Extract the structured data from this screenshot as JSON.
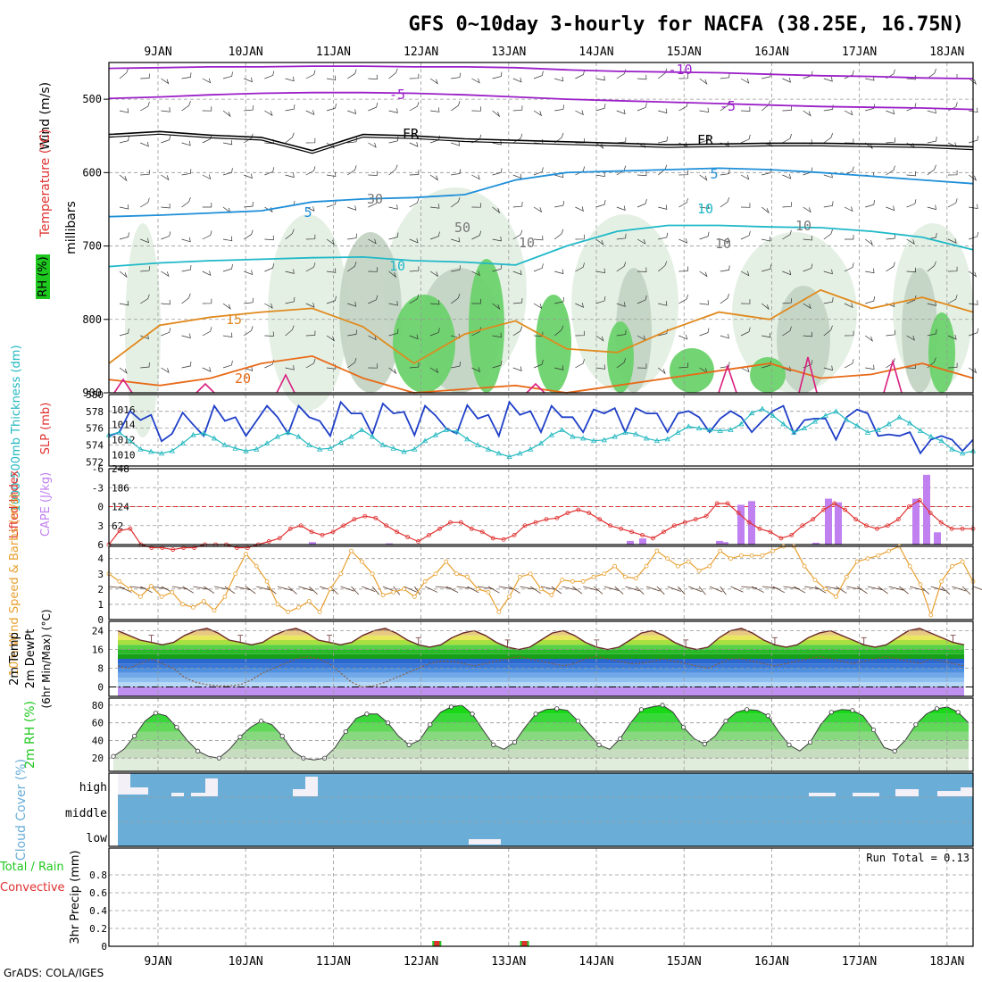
{
  "title": "GFS 0~10day 3-hourly for NACFA (38.25E, 16.75N)",
  "credit": "GrADS: COLA/IGES",
  "days": [
    "9JAN",
    "10JAN",
    "11JAN",
    "12JAN",
    "13JAN",
    "14JAN",
    "15JAN",
    "16JAN",
    "17JAN",
    "18JAN"
  ],
  "colors": {
    "purple": "#9b1fc8",
    "cyan": "#1fb8c8",
    "blue": "#1f8fd8",
    "orange": "#e08a1e",
    "deep_orange": "#e86a18",
    "magenta": "#d81f80",
    "slp": "#1f3fc8",
    "thick": "#22b8c0",
    "li": "#e03030",
    "cape": "#c080f0",
    "wind10": "#e8a030",
    "rhgreen": "#1fc81f",
    "cloud": "#6aaed8"
  },
  "chart_data": [
    {
      "type": "contour",
      "panel": "upper-air",
      "ylabels": [
        "Wind (m/s)",
        "Temperature (°C)",
        "RH (%)"
      ],
      "yaxis_label": "millibars",
      "yticks": [
        500,
        600,
        700,
        800,
        900
      ],
      "ylim": [
        900,
        450
      ],
      "contour_labels": [
        "-10",
        "-5",
        "-5",
        "FR",
        "FR",
        "5",
        "5",
        "10",
        "10",
        "15",
        "20",
        "30",
        "50",
        "10",
        "10",
        "10"
      ],
      "isotherms": [
        {
          "label": "-10",
          "values": [
            458,
            457,
            456,
            456,
            455,
            455,
            456,
            456,
            457,
            460,
            462,
            463,
            464,
            466,
            468,
            469,
            471,
            472
          ]
        },
        {
          "label": "-5",
          "values": [
            499,
            497,
            494,
            492,
            491,
            491,
            492,
            494,
            497,
            500,
            502,
            504,
            506,
            508,
            510,
            511,
            512,
            514
          ]
        },
        {
          "label": "FR",
          "values": [
            548,
            544,
            549,
            552,
            570,
            548,
            550,
            554,
            556,
            558,
            560,
            562,
            561,
            560,
            560,
            561,
            562,
            565
          ]
        },
        {
          "label": "5",
          "values": [
            660,
            658,
            655,
            652,
            640,
            636,
            634,
            630,
            610,
            600,
            598,
            596,
            594,
            596,
            600,
            605,
            610,
            615
          ]
        },
        {
          "label": "10",
          "values": [
            728,
            723,
            720,
            718,
            716,
            715,
            720,
            722,
            726,
            700,
            680,
            672,
            672,
            674,
            675,
            680,
            688,
            705
          ]
        },
        {
          "label": "15",
          "values": [
            860,
            808,
            797,
            790,
            785,
            810,
            860,
            820,
            802,
            840,
            845,
            815,
            790,
            800,
            760,
            785,
            770,
            790
          ]
        },
        {
          "label": "20",
          "values": [
            882,
            890,
            880,
            860,
            850,
            880,
            900,
            895,
            890,
            900,
            890,
            880,
            870,
            860,
            880,
            875,
            860,
            880
          ]
        }
      ]
    },
    {
      "type": "line",
      "panel": "slp-thickness",
      "ylabels": [
        "1000-500mb Thickness (dm)",
        "SLP (mb)"
      ],
      "left_ticks": [
        572,
        574,
        576,
        578,
        580
      ],
      "right_ticks": [
        1010,
        1012,
        1014,
        1016
      ],
      "series": [
        {
          "axis": "SLP (mb)",
          "values": [
            1012.5,
            1013,
            1015.8,
            1014.6,
            1015.3,
            1011.8,
            1012.8,
            1015.6,
            1014,
            1012.5,
            1016.5,
            1014.5,
            1015,
            1012.5,
            1014.5,
            1016.5,
            1015,
            1012.8,
            1016.5,
            1015,
            1014.5,
            1012.5,
            1017,
            1015.5,
            1015.5,
            1012.7,
            1016.8,
            1015.5,
            1015.7,
            1012.6,
            1016.5,
            1015.2,
            1013.5,
            1012.8,
            1016.6,
            1014.8,
            1015.3,
            1012.5,
            1017,
            1015.3,
            1015.8,
            1013,
            1016.5,
            1015,
            1015,
            1013,
            1016,
            1015.5,
            1016.2,
            1013,
            1016.2,
            1015.5,
            1015.5,
            1013,
            1015.5,
            1015.8,
            1015,
            1013,
            1014.8,
            1015.8,
            1015,
            1013,
            1014.5,
            1015.8,
            1016.5,
            1012.8,
            1014.6,
            1014.8,
            1014.8,
            1012,
            1015,
            1016,
            1015.5,
            1012.5,
            1012.7,
            1012.5,
            1013,
            1010.2,
            1012,
            1012.5,
            1012,
            1010.5,
            1012
          ]
        },
        {
          "axis": "1000-500mb Thickness (dm)",
          "values": [
            575.2,
            575.5,
            574.5,
            573.5,
            573.2,
            573.0,
            573.3,
            574.2,
            575.2,
            575.4,
            574.8,
            574.0,
            573.6,
            573.3,
            573.5,
            574.2,
            575.0,
            575.5,
            575.0,
            574.0,
            573.5,
            573.6,
            574.3,
            575.0,
            575.8,
            575.0,
            574.0,
            573.6,
            573.2,
            573.5,
            574.5,
            575.2,
            575.8,
            575.6,
            574.7,
            574.0,
            573.5,
            573.0,
            572.6,
            573.0,
            573.5,
            574.2,
            575.2,
            575.8,
            575.0,
            574.8,
            574.5,
            574.6,
            575.0,
            575.5,
            575.3,
            574.8,
            574.5,
            574.7,
            575.5,
            576.2,
            576.0,
            575.8,
            575.7,
            575.8,
            576.5,
            577.8,
            578.3,
            577.5,
            576.5,
            575.5,
            576.0,
            576.8,
            577.5,
            578.0,
            577.0,
            576.3,
            575.5,
            575.8,
            576.5,
            577.3,
            576.6,
            575.7,
            575.0,
            574.5,
            573.5,
            573.0,
            573.3
          ]
        }
      ]
    },
    {
      "type": "bar-line",
      "panel": "li-cape",
      "ylabels": [
        "Lifted Index",
        "CAPE (J/kg)"
      ],
      "left_ticks": [
        "6",
        "3",
        "0",
        "-3",
        "-6"
      ],
      "right_ticks": [
        "62",
        "124",
        "186",
        "248"
      ],
      "series": [
        {
          "name": "Lifted Index",
          "values": [
            6,
            3.8,
            3.5,
            6,
            6.5,
            6.5,
            6.8,
            6.5,
            6.5,
            6,
            6,
            6,
            6.5,
            6.5,
            6,
            5.5,
            5,
            3.5,
            3,
            4,
            4.5,
            4,
            3,
            2,
            1.5,
            1.8,
            3,
            4,
            4.8,
            5.5,
            4.5,
            3.5,
            2.5,
            2.5,
            3.5,
            4,
            5,
            5.2,
            4.5,
            3,
            2.5,
            2,
            1.8,
            1,
            0.5,
            1,
            2,
            3,
            3.5,
            4,
            4.5,
            5,
            4,
            3,
            2.5,
            2,
            1.5,
            -0.5,
            -0.5,
            1,
            2.5,
            3.5,
            4,
            5,
            4.5,
            3,
            2,
            0.5,
            -0.5,
            0.5,
            2,
            3,
            3.5,
            3,
            2,
            0,
            -1,
            1,
            2.5,
            3.5,
            3.5,
            3.5
          ]
        },
        {
          "name": "CAPE (J/kg)",
          "values": [
            0,
            0,
            0,
            0,
            0,
            0,
            0,
            0,
            0,
            0,
            0,
            0,
            0,
            0,
            0,
            0,
            0,
            0,
            0,
            0,
            0,
            0,
            0,
            0,
            0,
            0,
            0,
            0,
            0,
            0,
            0,
            0,
            0,
            0,
            0,
            0,
            0,
            0,
            0,
            0,
            0,
            0,
            0,
            0,
            0,
            0,
            0,
            0,
            0,
            0,
            0,
            0,
            0,
            0,
            0,
            0,
            0,
            0,
            0,
            0,
            0,
            0,
            0,
            0,
            0,
            0,
            0,
            0,
            0,
            0,
            0,
            0,
            0,
            0,
            0,
            0,
            0,
            0,
            0,
            0,
            0,
            0,
            0
          ]
        }
      ]
    },
    {
      "type": "line",
      "panel": "wind10m",
      "ylabels": [
        "10m Wind Speed & Barbs (m/s)"
      ],
      "yticks": [
        0,
        1,
        2,
        3,
        4
      ],
      "values": [
        3,
        2.5,
        2,
        1.5,
        2.2,
        1.5,
        1.8,
        1,
        0.8,
        1.2,
        0.6,
        1.5,
        3,
        4.3,
        3.5,
        2.5,
        1,
        0.5,
        0.8,
        1.2,
        0.5,
        2,
        3,
        4.5,
        3.8,
        3,
        1.6,
        1.8,
        2,
        1.5,
        2.5,
        3,
        3.8,
        3,
        2.8,
        2,
        1.8,
        0.5,
        1.5,
        2.8,
        3,
        2,
        1.6,
        2.6,
        2.5,
        2.5,
        2.8,
        3,
        3.5,
        2.8,
        2.7,
        3.5,
        4.5,
        4,
        3.5,
        3.8,
        3.2,
        3.5,
        4.5,
        4,
        4.2,
        4.2,
        4.2,
        4.5,
        4.8,
        4.8,
        3.5,
        2.6,
        2,
        1.5,
        2.8,
        3.8,
        4,
        4.2,
        4.5,
        4.8,
        3.5,
        2.3,
        0.3,
        2.5,
        3.5,
        3.8,
        2.5
      ]
    },
    {
      "type": "area-line",
      "panel": "temp2m",
      "ylabels": [
        "2m Temp",
        "2m DewPt",
        "(6hr Min/Max) (°C)"
      ],
      "yticks": [
        0,
        8,
        16,
        24
      ],
      "temp": [
        24,
        22,
        20,
        19,
        18,
        19,
        22,
        24,
        25,
        23,
        20,
        19,
        18,
        19,
        22,
        24,
        25,
        23,
        20,
        19,
        18,
        19,
        22,
        24,
        25,
        23,
        20,
        18,
        17,
        18,
        21,
        23,
        24,
        22,
        19,
        17,
        16,
        17,
        20,
        23,
        24,
        22,
        19,
        17,
        16,
        17,
        20,
        23,
        24,
        22,
        19,
        17,
        16,
        17,
        21,
        24,
        25,
        23,
        20,
        18,
        17,
        18,
        21,
        23,
        24,
        22,
        20,
        18,
        17,
        18,
        21,
        24,
        25,
        23,
        21,
        19,
        18
      ],
      "dewpoint": [
        9,
        8,
        10,
        12,
        10,
        8,
        4,
        2,
        1,
        0.5,
        0.5,
        1,
        3,
        6,
        8,
        10,
        12,
        13,
        12,
        10,
        6,
        2,
        0,
        0.5,
        2,
        4,
        6,
        8,
        10,
        11,
        11,
        10,
        9,
        10,
        11,
        12,
        13,
        12,
        11,
        10,
        9,
        10,
        12,
        13,
        12,
        11,
        10,
        10,
        11,
        12,
        11,
        10,
        9,
        8,
        10,
        12,
        12,
        11,
        10,
        9,
        10,
        11,
        12,
        13,
        12,
        11,
        10,
        11,
        12,
        13,
        12,
        11,
        10,
        12,
        11,
        10,
        9
      ]
    },
    {
      "type": "area-line",
      "panel": "rh2m",
      "ylabels": [
        "2m RH (%)"
      ],
      "yticks": [
        20,
        40,
        60,
        80
      ],
      "values": [
        22,
        30,
        45,
        62,
        71,
        68,
        55,
        40,
        28,
        22,
        20,
        30,
        44,
        55,
        62,
        58,
        45,
        28,
        20,
        18,
        20,
        32,
        50,
        65,
        70,
        70,
        60,
        45,
        35,
        40,
        58,
        72,
        78,
        80,
        70,
        52,
        35,
        30,
        38,
        55,
        70,
        75,
        76,
        74,
        62,
        48,
        35,
        30,
        42,
        60,
        75,
        78,
        80,
        72,
        55,
        42,
        36,
        45,
        62,
        72,
        75,
        74,
        68,
        50,
        35,
        28,
        38,
        58,
        72,
        75,
        74,
        68,
        52,
        32,
        28,
        40,
        58,
        70,
        76,
        78,
        72,
        60
      ]
    },
    {
      "type": "bar",
      "panel": "cloud",
      "ylabels": [
        "Cloud Cover (%)"
      ],
      "ytick_labels": [
        "high",
        "middle",
        "low"
      ],
      "values": []
    },
    {
      "type": "bar",
      "panel": "precip",
      "ylabels": [
        "Total / Rain",
        "Convective",
        "3hr Precip (mm)"
      ],
      "yticks": [
        "0",
        "0.2",
        "0.4",
        "0.6",
        "0.8"
      ],
      "ylim": [
        0,
        1
      ],
      "run_total_label": "Run Total = 0.13",
      "bars": [
        {
          "day_offset": 3.65,
          "total": 0.06,
          "conv": 0.06
        },
        {
          "day_offset": 4.65,
          "total": 0.06,
          "conv": 0.06
        }
      ]
    }
  ]
}
